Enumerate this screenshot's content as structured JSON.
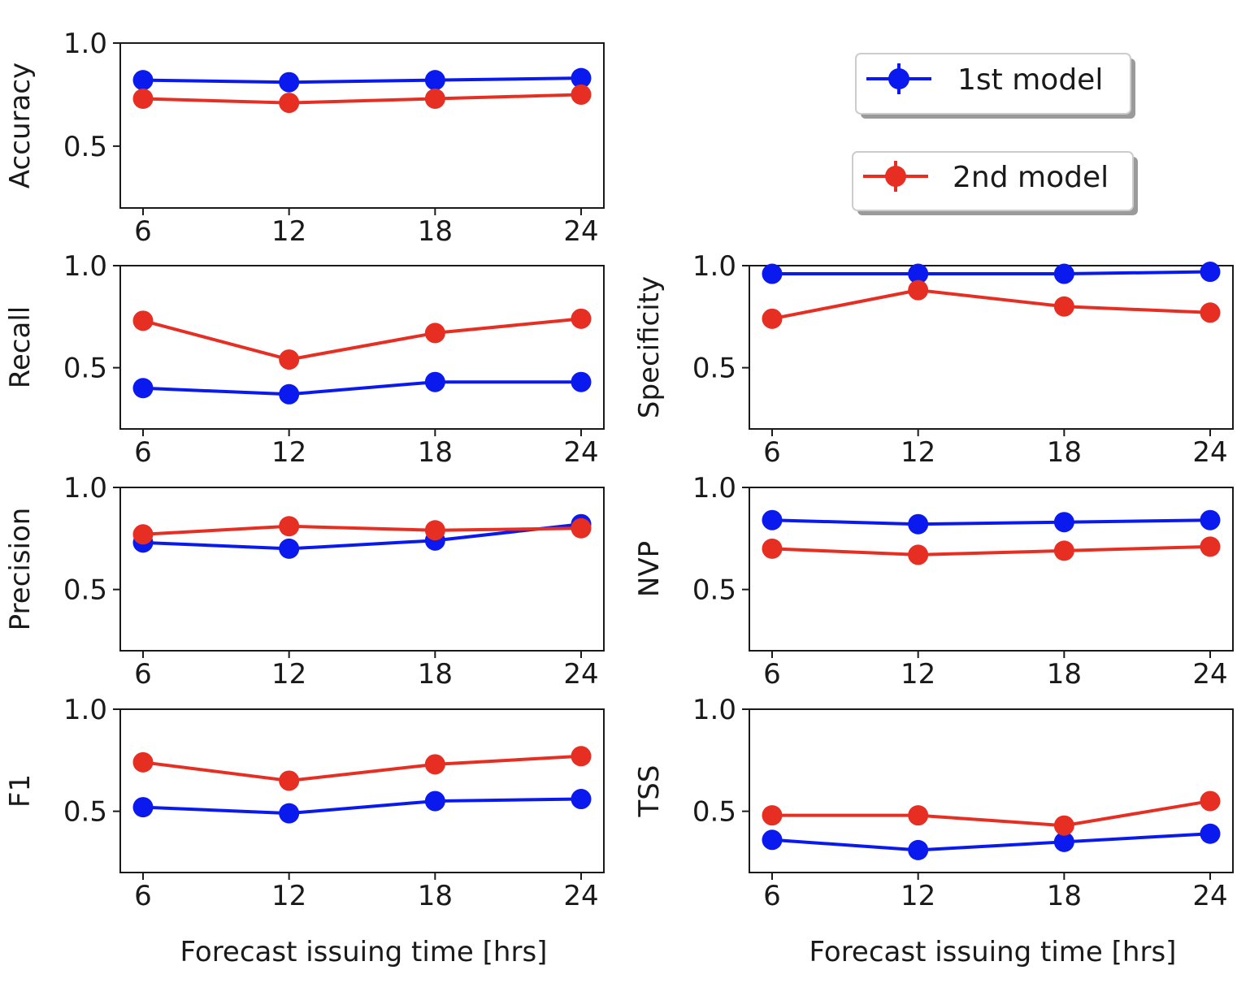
{
  "chart_data": [
    {
      "type": "line",
      "ylabel": "Accuracy",
      "xlabel": "",
      "x": [
        6,
        12,
        18,
        24
      ],
      "xticks": [
        "6",
        "12",
        "18",
        "24"
      ],
      "ylim": [
        0.2,
        1.0
      ],
      "yticks": [
        "0.5",
        "1.0"
      ],
      "series": [
        {
          "name": "1st model",
          "values": [
            0.82,
            0.81,
            0.82,
            0.83
          ]
        },
        {
          "name": "2nd model",
          "values": [
            0.73,
            0.71,
            0.73,
            0.75
          ]
        }
      ]
    },
    {
      "type": "line",
      "ylabel": "Recall",
      "xlabel": "",
      "x": [
        6,
        12,
        18,
        24
      ],
      "xticks": [
        "6",
        "12",
        "18",
        "24"
      ],
      "ylim": [
        0.2,
        1.0
      ],
      "yticks": [
        "0.5",
        "1.0"
      ],
      "series": [
        {
          "name": "1st model",
          "values": [
            0.4,
            0.37,
            0.43,
            0.43
          ]
        },
        {
          "name": "2nd model",
          "values": [
            0.73,
            0.54,
            0.67,
            0.74
          ]
        }
      ]
    },
    {
      "type": "line",
      "ylabel": "Specificity",
      "xlabel": "",
      "x": [
        6,
        12,
        18,
        24
      ],
      "xticks": [
        "6",
        "12",
        "18",
        "24"
      ],
      "ylim": [
        0.2,
        1.0
      ],
      "yticks": [
        "0.5",
        "1.0"
      ],
      "series": [
        {
          "name": "1st model",
          "values": [
            0.96,
            0.96,
            0.96,
            0.97
          ]
        },
        {
          "name": "2nd model",
          "values": [
            0.74,
            0.88,
            0.8,
            0.77
          ]
        }
      ]
    },
    {
      "type": "line",
      "ylabel": "Precision",
      "xlabel": "",
      "x": [
        6,
        12,
        18,
        24
      ],
      "xticks": [
        "6",
        "12",
        "18",
        "24"
      ],
      "ylim": [
        0.2,
        1.0
      ],
      "yticks": [
        "0.5",
        "1.0"
      ],
      "series": [
        {
          "name": "1st model",
          "values": [
            0.73,
            0.7,
            0.74,
            0.82
          ]
        },
        {
          "name": "2nd model",
          "values": [
            0.77,
            0.81,
            0.79,
            0.8
          ]
        }
      ]
    },
    {
      "type": "line",
      "ylabel": "NVP",
      "xlabel": "",
      "x": [
        6,
        12,
        18,
        24
      ],
      "xticks": [
        "6",
        "12",
        "18",
        "24"
      ],
      "ylim": [
        0.2,
        1.0
      ],
      "yticks": [
        "0.5",
        "1.0"
      ],
      "series": [
        {
          "name": "1st model",
          "values": [
            0.84,
            0.82,
            0.83,
            0.84
          ]
        },
        {
          "name": "2nd model",
          "values": [
            0.7,
            0.67,
            0.69,
            0.71
          ]
        }
      ]
    },
    {
      "type": "line",
      "ylabel": "F1",
      "xlabel": "Forecast issuing time [hrs]",
      "x": [
        6,
        12,
        18,
        24
      ],
      "xticks": [
        "6",
        "12",
        "18",
        "24"
      ],
      "ylim": [
        0.2,
        1.0
      ],
      "yticks": [
        "0.5",
        "1.0"
      ],
      "series": [
        {
          "name": "1st model",
          "values": [
            0.52,
            0.49,
            0.55,
            0.56
          ]
        },
        {
          "name": "2nd model",
          "values": [
            0.74,
            0.65,
            0.73,
            0.77
          ]
        }
      ]
    },
    {
      "type": "line",
      "ylabel": "TSS",
      "xlabel": "Forecast issuing time [hrs]",
      "x": [
        6,
        12,
        18,
        24
      ],
      "xticks": [
        "6",
        "12",
        "18",
        "24"
      ],
      "ylim": [
        0.2,
        1.0
      ],
      "yticks": [
        "0.5",
        "1.0"
      ],
      "series": [
        {
          "name": "1st model",
          "values": [
            0.36,
            0.31,
            0.35,
            0.39
          ]
        },
        {
          "name": "2nd model",
          "values": [
            0.48,
            0.48,
            0.43,
            0.55
          ]
        }
      ]
    }
  ],
  "legend": {
    "placement": "top-right",
    "entries": [
      {
        "label": "1st model",
        "color": "#0a1aee"
      },
      {
        "label": "2nd model",
        "color": "#e62e22"
      }
    ]
  },
  "colors": {
    "series1": "#0a1aee",
    "series2": "#e62e22"
  }
}
